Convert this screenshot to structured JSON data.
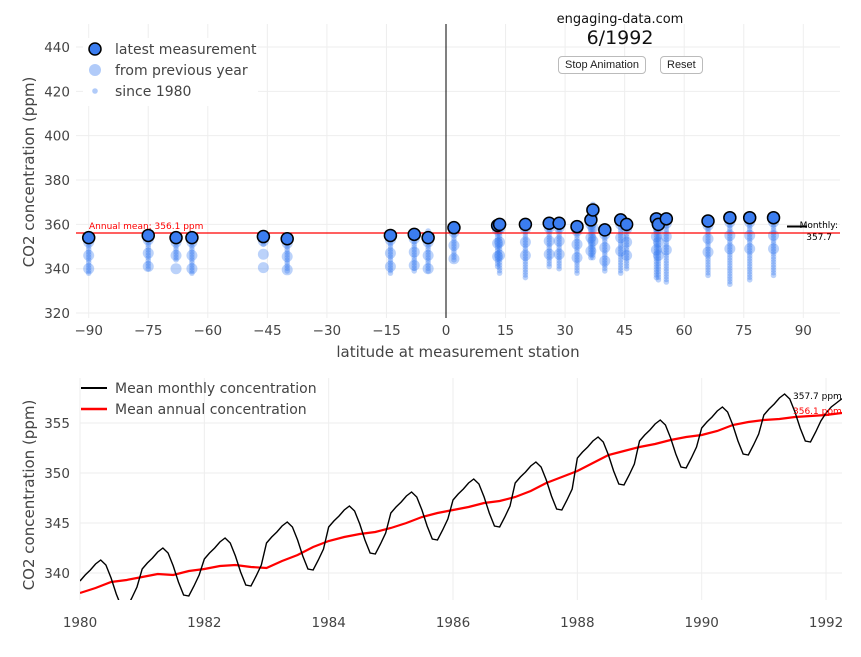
{
  "header": {
    "site": "engaging-data.com",
    "date": "6/1992",
    "stop_label": "Stop Animation",
    "reset_label": "Reset"
  },
  "colors": {
    "marker": "#3b7df0",
    "annual": "#ff0000",
    "monthly": "#000000"
  },
  "chart_data": [
    {
      "type": "scatter",
      "xlabel": "latitude at measurement station",
      "ylabel": "CO2 concentration (ppm)",
      "xlim": [
        -95,
        99
      ],
      "ylim": [
        316,
        448
      ],
      "xticks": [
        -90,
        -75,
        -60,
        -45,
        -30,
        -15,
        0,
        15,
        30,
        45,
        60,
        75,
        90
      ],
      "xtick_labels": [
        "−90",
        "−75",
        "−60",
        "−45",
        "−30",
        "−15",
        "0",
        "15",
        "30",
        "45",
        "60",
        "75",
        "90"
      ],
      "yticks": [
        320,
        340,
        360,
        380,
        400,
        420,
        440
      ],
      "grid": true,
      "legend": {
        "position": "top-left",
        "items": [
          "latest measurement",
          "from previous year",
          "since 1980"
        ]
      },
      "annual_mean": {
        "value": 356.1,
        "label": "Annual mean: 356.1 ppm"
      },
      "monthly": {
        "value": 357.7,
        "label1": "Monthly:",
        "label2": "357.7"
      },
      "stations": [
        {
          "lat": -90,
          "latest": 354,
          "since_1980": [
            338,
            352
          ]
        },
        {
          "lat": -75,
          "latest": 355,
          "since_1980": [
            340,
            354
          ]
        },
        {
          "lat": -68,
          "latest": 354,
          "since_1980": [
            344,
            352
          ]
        },
        {
          "lat": -64,
          "latest": 354,
          "since_1980": [
            338,
            353
          ]
        },
        {
          "lat": -46,
          "latest": 354.5,
          "since_1980": [
            351,
            354
          ]
        },
        {
          "lat": -40,
          "latest": 353.5,
          "since_1980": [
            339,
            352
          ]
        },
        {
          "lat": -14,
          "latest": 355,
          "since_1980": [
            338,
            354
          ]
        },
        {
          "lat": -8,
          "latest": 355.5,
          "since_1980": [
            339,
            355
          ]
        },
        {
          "lat": -4.5,
          "latest": 354,
          "since_1980": [
            339,
            357
          ]
        },
        {
          "lat": 2,
          "latest": 358.5,
          "since_1980": [
            344,
            357
          ]
        },
        {
          "lat": 13,
          "latest": 359.5,
          "since_1980": [
            341,
            358
          ]
        },
        {
          "lat": 13.5,
          "latest": 360,
          "since_1980": [
            338,
            359
          ]
        },
        {
          "lat": 20,
          "latest": 360,
          "since_1980": [
            336,
            359
          ]
        },
        {
          "lat": 26,
          "latest": 360.5,
          "since_1980": [
            341,
            359
          ]
        },
        {
          "lat": 28.5,
          "latest": 360.5,
          "since_1980": [
            340,
            359
          ]
        },
        {
          "lat": 33,
          "latest": 359,
          "since_1980": [
            338,
            358
          ]
        },
        {
          "lat": 36.5,
          "latest": 362,
          "since_1980": [
            345,
            366
          ]
        },
        {
          "lat": 37,
          "latest": 366.5,
          "since_1980": [
            345,
            369
          ]
        },
        {
          "lat": 40,
          "latest": 357.5,
          "since_1980": [
            339,
            360
          ]
        },
        {
          "lat": 44,
          "latest": 362,
          "since_1980": [
            338,
            361
          ]
        },
        {
          "lat": 45.5,
          "latest": 360,
          "since_1980": [
            340,
            360
          ]
        },
        {
          "lat": 53,
          "latest": 362.5,
          "since_1980": [
            336,
            361
          ]
        },
        {
          "lat": 53.5,
          "latest": 360,
          "since_1980": [
            335,
            361
          ]
        },
        {
          "lat": 55.5,
          "latest": 362.5,
          "since_1980": [
            334,
            361
          ]
        },
        {
          "lat": 66,
          "latest": 361.5,
          "since_1980": [
            337,
            361
          ]
        },
        {
          "lat": 71.5,
          "latest": 363,
          "since_1980": [
            333,
            362
          ]
        },
        {
          "lat": 76.5,
          "latest": 363,
          "since_1980": [
            335,
            362
          ]
        },
        {
          "lat": 82.5,
          "latest": 363,
          "since_1980": [
            337,
            362
          ]
        }
      ]
    },
    {
      "type": "line",
      "xlabel": "",
      "ylabel": "CO2 concentration (ppm)",
      "xlim": [
        1980,
        1992.27
      ],
      "ylim": [
        337.5,
        359.3
      ],
      "xticks": [
        1980,
        1982,
        1984,
        1986,
        1988,
        1990,
        1992
      ],
      "yticks": [
        340,
        345,
        350,
        355
      ],
      "grid": true,
      "legend": {
        "position": "top-left"
      },
      "series": [
        {
          "name": "Mean monthly concentration",
          "x_start": 1980,
          "step": "month",
          "end_label": "357.7 ppm",
          "values": [
            339.2,
            339.8,
            340.3,
            340.9,
            341.3,
            340.8,
            339.5,
            337.9,
            336.6,
            336.5,
            337.5,
            338.6,
            340.4,
            341.0,
            341.5,
            342.1,
            342.5,
            342.0,
            340.7,
            339.1,
            337.8,
            337.7,
            338.7,
            339.8,
            341.4,
            342.0,
            342.5,
            343.1,
            343.5,
            343.0,
            341.7,
            340.1,
            338.8,
            338.7,
            339.7,
            340.8,
            343.0,
            343.6,
            344.1,
            344.7,
            345.1,
            344.6,
            343.3,
            341.7,
            340.4,
            340.3,
            341.3,
            342.4,
            344.6,
            345.2,
            345.7,
            346.3,
            346.7,
            346.2,
            344.9,
            343.3,
            342.0,
            341.9,
            342.9,
            344.0,
            346.0,
            346.6,
            347.1,
            347.7,
            348.1,
            347.6,
            346.3,
            344.7,
            343.4,
            343.3,
            344.3,
            345.4,
            347.3,
            347.9,
            348.4,
            349.0,
            349.4,
            348.9,
            347.6,
            346.0,
            344.7,
            344.6,
            345.6,
            346.7,
            349.0,
            349.6,
            350.1,
            350.7,
            351.1,
            350.6,
            349.3,
            347.7,
            346.4,
            346.3,
            347.3,
            348.4,
            351.5,
            352.1,
            352.6,
            353.2,
            353.6,
            353.1,
            351.8,
            350.2,
            348.9,
            348.8,
            349.8,
            350.9,
            353.2,
            353.8,
            354.3,
            354.9,
            355.3,
            354.8,
            353.5,
            351.9,
            350.6,
            350.5,
            351.5,
            352.6,
            354.5,
            355.1,
            355.6,
            356.2,
            356.6,
            356.1,
            354.8,
            353.2,
            351.9,
            351.8,
            352.8,
            353.9,
            355.8,
            356.4,
            356.9,
            357.5,
            357.9,
            357.4,
            356.1,
            354.5,
            353.2,
            353.1,
            354.1,
            355.2,
            356.0,
            356.6,
            357.0,
            357.4,
            357.6,
            357.7
          ]
        },
        {
          "name": "Mean annual concentration",
          "x_start": 1980,
          "step": "quarter",
          "end_label": "356.1 ppm",
          "values": [
            338.0,
            338.5,
            339.1,
            339.3,
            339.6,
            339.9,
            339.8,
            340.2,
            340.4,
            340.7,
            340.8,
            340.6,
            340.5,
            341.2,
            341.8,
            342.6,
            343.2,
            343.6,
            343.9,
            344.1,
            344.5,
            345.0,
            345.6,
            346.0,
            346.3,
            346.6,
            347.0,
            347.2,
            347.6,
            348.2,
            349.0,
            349.6,
            350.2,
            351.0,
            351.8,
            352.2,
            352.6,
            352.9,
            353.3,
            353.6,
            353.8,
            354.2,
            354.8,
            355.1,
            355.3,
            355.4,
            355.6,
            355.7,
            355.8,
            356.0,
            356.1
          ]
        }
      ]
    }
  ]
}
